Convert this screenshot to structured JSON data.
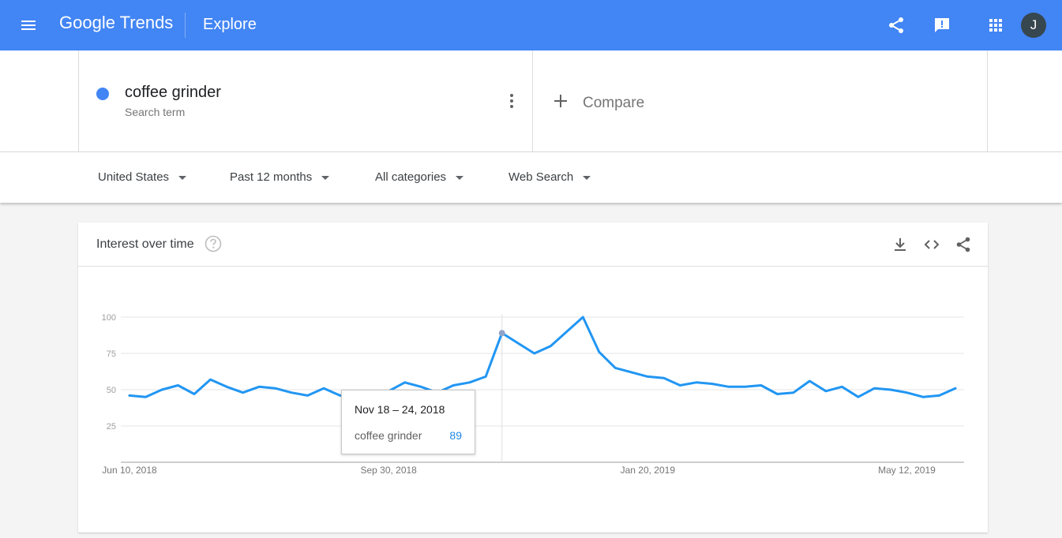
{
  "header": {
    "logo_text": "Google Trends",
    "title": "Explore",
    "avatar_initial": "J",
    "bg_color": "#4285f4"
  },
  "search": {
    "term": "coffee grinder",
    "term_type": "Search term",
    "term_color": "#4285f4",
    "compare_label": "Compare"
  },
  "filters": [
    {
      "label": "United States"
    },
    {
      "label": "Past 12 months"
    },
    {
      "label": "All categories"
    },
    {
      "label": "Web Search"
    }
  ],
  "card": {
    "title": "Interest over time"
  },
  "tooltip": {
    "date": "Nov 18 – 24, 2018",
    "term": "coffee grinder",
    "value": "89"
  },
  "chart_data": {
    "type": "line",
    "title": "Interest over time",
    "ylim": [
      0,
      100
    ],
    "yticks": [
      "25",
      "50",
      "75",
      "100"
    ],
    "xticks": [
      "Jun 10, 2018",
      "Sep 30, 2018",
      "Jan 20, 2019",
      "May 12, 2019"
    ],
    "grid": true,
    "line_color": "#2196f3",
    "highlight_index": 23,
    "series": [
      {
        "name": "coffee grinder",
        "x": [
          "Jun 10, 2018",
          "Jun 17, 2018",
          "Jun 24, 2018",
          "Jul 1, 2018",
          "Jul 8, 2018",
          "Jul 15, 2018",
          "Jul 22, 2018",
          "Jul 29, 2018",
          "Aug 5, 2018",
          "Aug 12, 2018",
          "Aug 19, 2018",
          "Aug 26, 2018",
          "Sep 2, 2018",
          "Sep 9, 2018",
          "Sep 16, 2018",
          "Sep 23, 2018",
          "Sep 30, 2018",
          "Oct 7, 2018",
          "Oct 14, 2018",
          "Oct 21, 2018",
          "Oct 28, 2018",
          "Nov 4, 2018",
          "Nov 11, 2018",
          "Nov 18, 2018",
          "Nov 25, 2018",
          "Dec 2, 2018",
          "Dec 9, 2018",
          "Dec 16, 2018",
          "Dec 23, 2018",
          "Dec 30, 2018",
          "Jan 6, 2019",
          "Jan 13, 2019",
          "Jan 20, 2019",
          "Jan 27, 2019",
          "Feb 3, 2019",
          "Feb 10, 2019",
          "Feb 17, 2019",
          "Feb 24, 2019",
          "Mar 3, 2019",
          "Mar 10, 2019",
          "Mar 17, 2019",
          "Mar 24, 2019",
          "Mar 31, 2019",
          "Apr 7, 2019",
          "Apr 14, 2019",
          "Apr 21, 2019",
          "Apr 28, 2019",
          "May 5, 2019",
          "May 12, 2019",
          "May 19, 2019",
          "May 26, 2019",
          "Jun 2, 2019"
        ],
        "values": [
          46,
          45,
          50,
          53,
          47,
          57,
          52,
          48,
          52,
          51,
          48,
          46,
          51,
          46,
          47,
          47,
          49,
          55,
          52,
          48,
          53,
          55,
          59,
          89,
          82,
          75,
          80,
          90,
          100,
          76,
          65,
          62,
          59,
          58,
          53,
          55,
          54,
          52,
          52,
          53,
          47,
          48,
          56,
          49,
          52,
          45,
          51,
          50,
          48,
          45,
          46,
          51
        ]
      }
    ]
  }
}
